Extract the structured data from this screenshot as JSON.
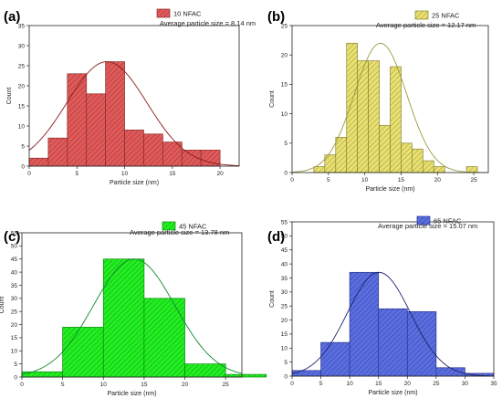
{
  "chart_data": [
    {
      "type": "bar",
      "panel_label": "(a)",
      "legend": "10 NFAC",
      "annotation": "Average particle size = 8.14 nm",
      "xlabel": "Particle size (nm)",
      "ylabel": "Count",
      "xlim": [
        0,
        22
      ],
      "ylim": [
        0,
        35
      ],
      "xticks": [
        0,
        5,
        10,
        15,
        20
      ],
      "yticks": [
        0,
        5,
        10,
        15,
        20,
        25,
        30,
        35
      ],
      "bin_width": 2,
      "bin_starts": [
        0,
        2,
        4,
        6,
        8,
        10,
        12,
        14,
        16,
        18
      ],
      "values": [
        2,
        7,
        23,
        18,
        26,
        9,
        8,
        6,
        4,
        4
      ],
      "fit_mean": 8.14,
      "fit_sigma": 4.2,
      "fit_peak": 26,
      "color": "#e05a5a",
      "hatch": "#8a2a2a",
      "fit_color": "#8a1c1c"
    },
    {
      "type": "bar",
      "panel_label": "(b)",
      "legend": "25 NFAC",
      "annotation": "Average particle size = 12.17 nm",
      "xlabel": "Particle size (nm)",
      "ylabel": "Count",
      "xlim": [
        0,
        27
      ],
      "ylim": [
        0,
        25
      ],
      "xticks": [
        0,
        5,
        10,
        15,
        20,
        25
      ],
      "yticks": [
        0,
        5,
        10,
        15,
        20,
        25
      ],
      "bin_width": 1.5,
      "bin_starts": [
        3,
        4.5,
        6,
        7.5,
        9,
        10.5,
        12,
        13.5,
        15,
        16.5,
        18,
        19.5,
        24
      ],
      "values": [
        1,
        3,
        6,
        22,
        19,
        19,
        8,
        18,
        5,
        4,
        2,
        1,
        1
      ],
      "fit_mean": 12.17,
      "fit_sigma": 3.6,
      "fit_peak": 22,
      "color": "#e8e070",
      "hatch": "#8a8530",
      "fit_color": "#9a9a40"
    },
    {
      "type": "bar",
      "panel_label": "(c)",
      "legend": "45 NFAC",
      "annotation": "Average particle size = 13.78 nm",
      "xlabel": "Particle size (nm)",
      "ylabel": "Count",
      "xlim": [
        0,
        27
      ],
      "ylim": [
        0,
        55
      ],
      "xticks": [
        0,
        5,
        10,
        15,
        20,
        25
      ],
      "yticks": [
        0,
        5,
        10,
        15,
        20,
        25,
        30,
        35,
        40,
        45,
        50,
        55
      ],
      "bin_width": 5,
      "bin_starts": [
        0,
        5,
        10,
        15,
        20,
        25
      ],
      "values": [
        2,
        19,
        45,
        30,
        5,
        1
      ],
      "fit_mean": 13.78,
      "fit_sigma": 5.0,
      "fit_peak": 45,
      "color": "#22ee22",
      "hatch": "#0a8a0a",
      "fit_color": "#0f8a2a"
    },
    {
      "type": "bar",
      "panel_label": "(d)",
      "legend": "65 NFAC",
      "annotation": "Average particle size = 15.07 nm",
      "xlabel": "Particle size (nm)",
      "ylabel": "Count",
      "xlim": [
        0,
        35
      ],
      "ylim": [
        0,
        55
      ],
      "xticks": [
        0,
        5,
        10,
        15,
        20,
        25,
        30,
        35
      ],
      "yticks": [
        0,
        5,
        10,
        15,
        20,
        25,
        30,
        35,
        40,
        45,
        50,
        55
      ],
      "bin_width": 5,
      "bin_starts": [
        0,
        5,
        10,
        15,
        20,
        25,
        30
      ],
      "values": [
        2,
        12,
        37,
        24,
        23,
        3,
        1
      ],
      "fit_mean": 15.07,
      "fit_sigma": 5.5,
      "fit_peak": 37,
      "color": "#5a6ee0",
      "hatch": "#2a3590",
      "fit_color": "#1c2470"
    }
  ]
}
